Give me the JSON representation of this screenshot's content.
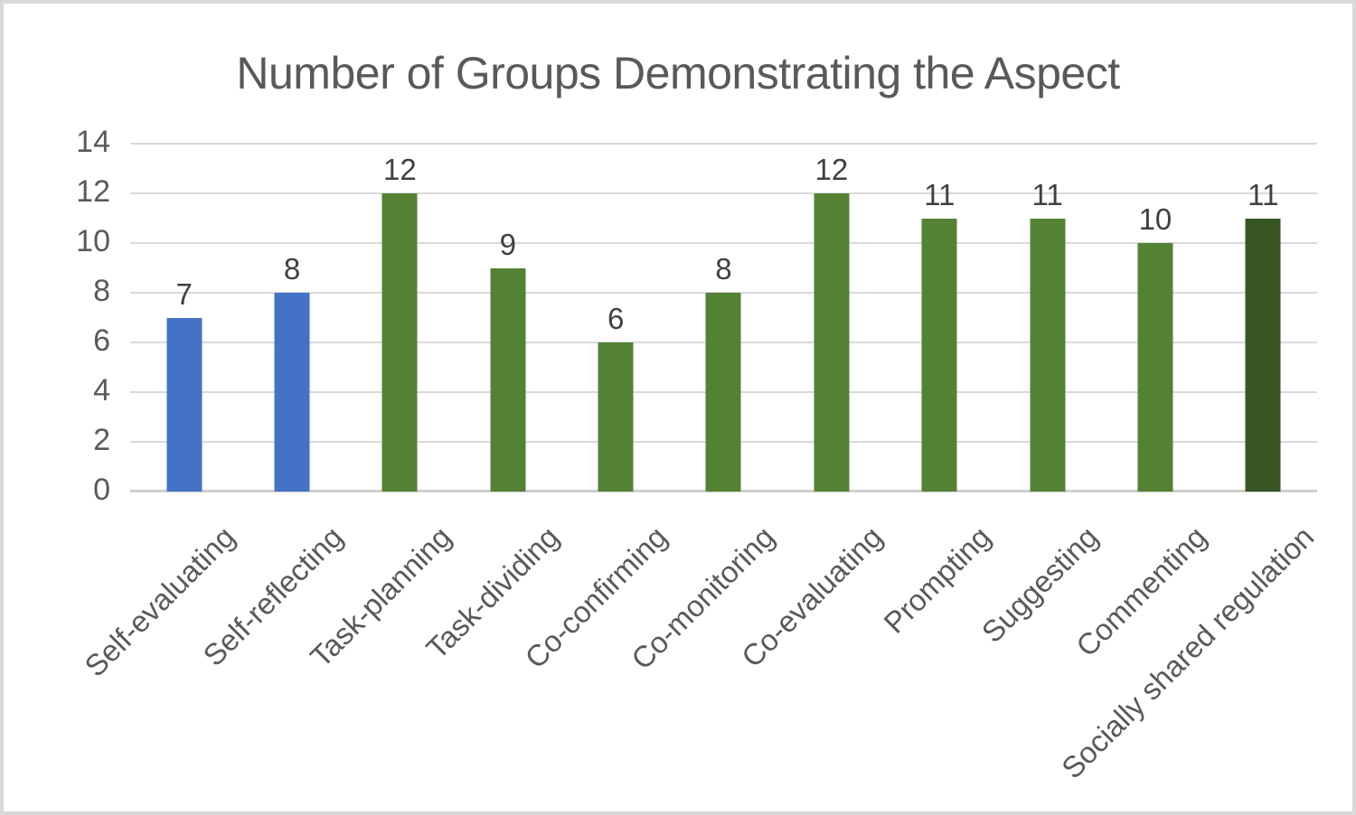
{
  "chart_data": {
    "type": "bar",
    "title": "Number of Groups Demonstrating the Aspect",
    "categories": [
      "Self-evaluating",
      "Self-reflecting",
      "Task-planning",
      "Task-dividing",
      "Co-confirming",
      "Co-monitoring",
      "Co-evaluating",
      "Prompting",
      "Suggesting",
      "Commenting",
      "Socially shared regulation"
    ],
    "values": [
      7,
      8,
      12,
      9,
      6,
      8,
      12,
      11,
      11,
      10,
      11
    ],
    "bar_colors": [
      "#4472C4",
      "#4472C4",
      "#548235",
      "#548235",
      "#548235",
      "#548235",
      "#548235",
      "#548235",
      "#548235",
      "#548235",
      "#375623"
    ],
    "data_labels": [
      "7",
      "8",
      "12",
      "9",
      "6",
      "8",
      "12",
      "11",
      "11",
      "10",
      "11"
    ],
    "xlabel": "",
    "ylabel": "",
    "ylim": [
      0,
      14
    ],
    "yticks": [
      "0",
      "2",
      "4",
      "6",
      "8",
      "10",
      "12",
      "14"
    ],
    "grid": true,
    "legend_position": "none"
  },
  "colors": {
    "title_text": "#595959",
    "axis_tick_text": "#595959",
    "data_label_text": "#404040",
    "x_label_text": "#595959",
    "gridline": "#D9D9D9",
    "axis_line": "#D0CECE",
    "background": "#FFFFFF",
    "frame_border": "#D9D9D9",
    "series_blue": "#4472C4",
    "series_green": "#548235",
    "series_dark_green": "#375623"
  }
}
